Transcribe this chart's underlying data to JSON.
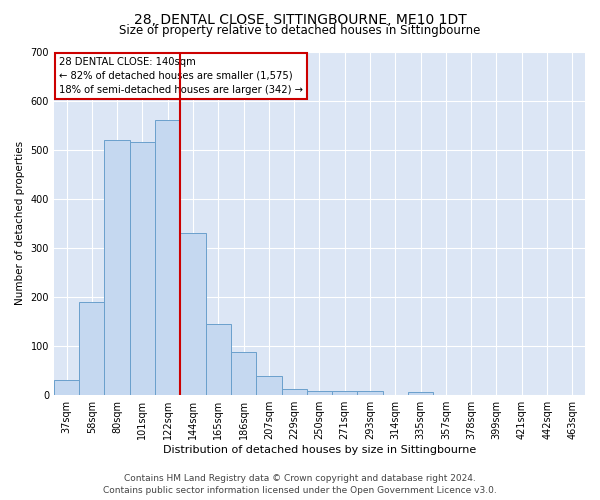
{
  "title": "28, DENTAL CLOSE, SITTINGBOURNE, ME10 1DT",
  "subtitle": "Size of property relative to detached houses in Sittingbourne",
  "xlabel": "Distribution of detached houses by size in Sittingbourne",
  "ylabel": "Number of detached properties",
  "categories": [
    "37sqm",
    "58sqm",
    "80sqm",
    "101sqm",
    "122sqm",
    "144sqm",
    "165sqm",
    "186sqm",
    "207sqm",
    "229sqm",
    "250sqm",
    "271sqm",
    "293sqm",
    "314sqm",
    "335sqm",
    "357sqm",
    "378sqm",
    "399sqm",
    "421sqm",
    "442sqm",
    "463sqm"
  ],
  "values": [
    30,
    190,
    520,
    515,
    560,
    330,
    145,
    88,
    40,
    12,
    8,
    8,
    8,
    0,
    7,
    0,
    0,
    0,
    0,
    0,
    0
  ],
  "bar_color": "#c5d8f0",
  "bar_edge_color": "#6aa0cc",
  "vline_color": "#cc0000",
  "ylim": [
    0,
    700
  ],
  "yticks": [
    0,
    100,
    200,
    300,
    400,
    500,
    600,
    700
  ],
  "annotation_text": "28 DENTAL CLOSE: 140sqm\n← 82% of detached houses are smaller (1,575)\n18% of semi-detached houses are larger (342) →",
  "footer_line1": "Contains HM Land Registry data © Crown copyright and database right 2024.",
  "footer_line2": "Contains public sector information licensed under the Open Government Licence v3.0.",
  "fig_bg_color": "#ffffff",
  "plot_bg_color": "#dce6f5",
  "title_fontsize": 10,
  "subtitle_fontsize": 8.5,
  "xlabel_fontsize": 8,
  "ylabel_fontsize": 7.5,
  "tick_fontsize": 7,
  "footer_fontsize": 6.5,
  "vline_bar_index": 5
}
